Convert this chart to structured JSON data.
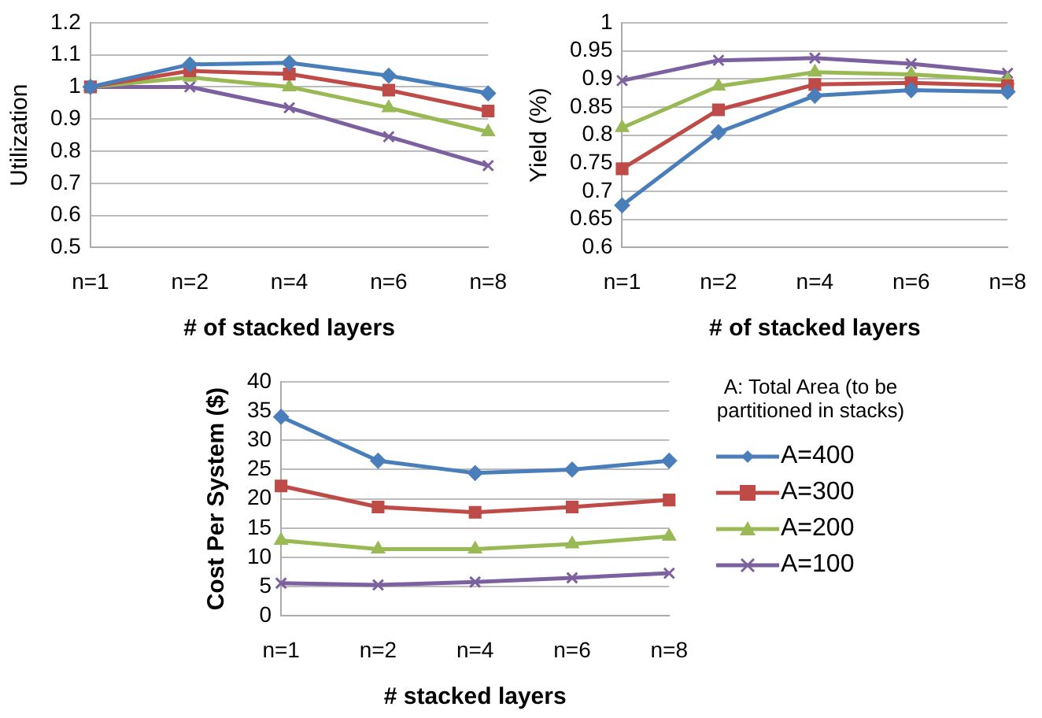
{
  "chart_data": [
    {
      "type": "line",
      "ylabel": "Utilization",
      "xlabel": "# of stacked layers",
      "categories": [
        "n=1",
        "n=2",
        "n=4",
        "n=6",
        "n=8"
      ],
      "ylim": [
        0.5,
        1.2
      ],
      "yticks": [
        0.5,
        0.6,
        0.7,
        0.8,
        0.9,
        1,
        1.1,
        1.2
      ],
      "grid": "y",
      "legend": false,
      "series": [
        {
          "color": "#4a7ebb",
          "marker": "diamond",
          "values": [
            1,
            1.07,
            1.075,
            1.035,
            0.98
          ]
        },
        {
          "color": "#be4b48",
          "marker": "square",
          "values": [
            1,
            1.05,
            1.04,
            0.99,
            0.925
          ]
        },
        {
          "color": "#98b954",
          "marker": "triangle",
          "values": [
            1,
            1.03,
            1.0,
            0.935,
            0.86
          ]
        },
        {
          "color": "#7d60a0",
          "marker": "cross",
          "values": [
            1,
            1.0,
            0.935,
            0.845,
            0.755
          ]
        }
      ]
    },
    {
      "type": "line",
      "ylabel": "Yield (%)",
      "xlabel": "# of stacked layers",
      "categories": [
        "n=1",
        "n=2",
        "n=4",
        "n=6",
        "n=8"
      ],
      "ylim": [
        0.6,
        1
      ],
      "yticks": [
        0.6,
        0.65,
        0.7,
        0.75,
        0.8,
        0.85,
        0.9,
        0.95,
        1
      ],
      "grid": "y",
      "legend": false,
      "series": [
        {
          "color": "#4a7ebb",
          "marker": "diamond",
          "values": [
            0.675,
            0.805,
            0.87,
            0.88,
            0.877
          ]
        },
        {
          "color": "#be4b48",
          "marker": "square",
          "values": [
            0.74,
            0.845,
            0.89,
            0.893,
            0.888
          ]
        },
        {
          "color": "#98b954",
          "marker": "triangle",
          "values": [
            0.813,
            0.887,
            0.912,
            0.908,
            0.898
          ]
        },
        {
          "color": "#7d60a0",
          "marker": "cross",
          "values": [
            0.897,
            0.933,
            0.937,
            0.927,
            0.91
          ]
        }
      ]
    },
    {
      "type": "line",
      "ylabel": "Cost Per System ($)",
      "xlabel": "# stacked layers",
      "legend_title": "A: Total Area (to be partitioned in stacks)",
      "categories": [
        "n=1",
        "n=2",
        "n=4",
        "n=6",
        "n=8"
      ],
      "ylim": [
        0,
        40
      ],
      "yticks": [
        0,
        5,
        10,
        15,
        20,
        25,
        30,
        35,
        40
      ],
      "grid": "y",
      "legend": "right",
      "series": [
        {
          "name": "A=400",
          "color": "#4a7ebb",
          "marker": "diamond",
          "values": [
            34,
            26.5,
            24.4,
            25,
            26.5
          ]
        },
        {
          "name": "A=300",
          "color": "#be4b48",
          "marker": "square",
          "values": [
            22.2,
            18.6,
            17.7,
            18.6,
            19.8
          ]
        },
        {
          "name": "A=200",
          "color": "#98b954",
          "marker": "triangle",
          "values": [
            12.9,
            11.4,
            11.4,
            12.3,
            13.6
          ]
        },
        {
          "name": "A=100",
          "color": "#7d60a0",
          "marker": "cross",
          "values": [
            5.6,
            5.3,
            5.8,
            6.5,
            7.3
          ]
        }
      ]
    }
  ]
}
